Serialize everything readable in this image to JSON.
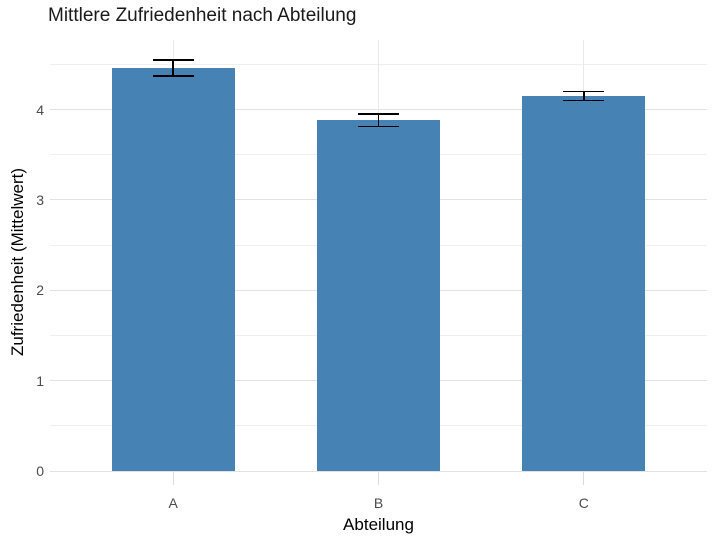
{
  "chart_data": {
    "type": "bar",
    "title": "Mittlere Zufriedenheit nach Abteilung",
    "xlabel": "Abteilung",
    "ylabel": "Zufriedenheit (Mittelwert)",
    "categories": [
      "A",
      "B",
      "C"
    ],
    "series": [
      {
        "name": "Zufriedenheit (Mittelwert)",
        "values": [
          4.46,
          3.88,
          4.15
        ],
        "errors": [
          0.09,
          0.07,
          0.05
        ]
      }
    ],
    "ylim": [
      0,
      4.77
    ],
    "yticks": [
      0,
      1,
      2,
      3,
      4
    ],
    "ytick_labels": [
      "0",
      "1",
      "2",
      "3",
      "4"
    ],
    "y_minor_gridlines": [
      0.5,
      1.5,
      2.5,
      3.5,
      4.5
    ],
    "grid": "horizontal-major-minor-plus-category-verticals",
    "legend": "none",
    "bar_color": "#4682B4",
    "error_bar_color": "#000000"
  },
  "style": {
    "background": "#ffffff",
    "grid_major_color": "#e2e2e2",
    "grid_minor_color": "#efefef",
    "grid_vertical_color": "#e9e9e9",
    "axis_tick_color": "#dcdcdc",
    "tick_label_color": "#4d4d4d",
    "title_color": "#1a1a1a",
    "axis_title_color": "#000000"
  }
}
